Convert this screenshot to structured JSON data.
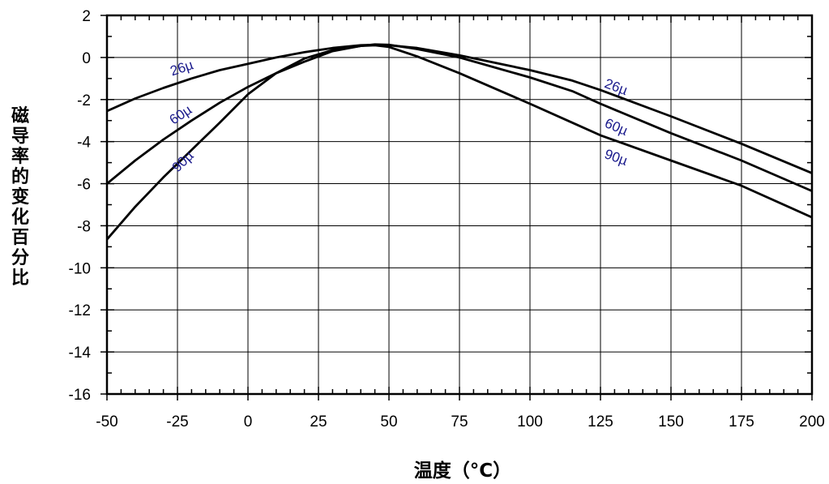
{
  "chart_data": {
    "type": "line",
    "xlabel": "温度（°C）",
    "ylabel": "磁导率的变化百分比",
    "xlim": [
      -50,
      200
    ],
    "ylim": [
      -16,
      2
    ],
    "xticks": [
      -50,
      -25,
      0,
      25,
      50,
      75,
      100,
      125,
      150,
      175,
      200
    ],
    "yticks": [
      2,
      0,
      -2,
      -4,
      -6,
      -8,
      -10,
      -12,
      -14,
      -16
    ],
    "x_minor_step": 5,
    "y_minor_step": 1,
    "grid": true,
    "colors": {
      "line": "#000000",
      "grid": "#000000",
      "label": "#1a1a8c"
    },
    "series": [
      {
        "name": "26µ",
        "points": [
          [
            -50,
            -2.55
          ],
          [
            -40,
            -1.95
          ],
          [
            -30,
            -1.45
          ],
          [
            -20,
            -1.0
          ],
          [
            -10,
            -0.6
          ],
          [
            0,
            -0.3
          ],
          [
            10,
            0.0
          ],
          [
            20,
            0.25
          ],
          [
            30,
            0.45
          ],
          [
            40,
            0.58
          ],
          [
            45,
            0.6
          ],
          [
            50,
            0.58
          ],
          [
            60,
            0.45
          ],
          [
            75,
            0.1
          ],
          [
            100,
            -0.6
          ],
          [
            115,
            -1.1
          ],
          [
            125,
            -1.55
          ],
          [
            150,
            -2.8
          ],
          [
            175,
            -4.1
          ],
          [
            200,
            -5.5
          ]
        ]
      },
      {
        "name": "60µ",
        "points": [
          [
            -50,
            -6.0
          ],
          [
            -40,
            -4.9
          ],
          [
            -30,
            -3.9
          ],
          [
            -20,
            -3.0
          ],
          [
            -10,
            -2.15
          ],
          [
            0,
            -1.4
          ],
          [
            10,
            -0.75
          ],
          [
            20,
            -0.2
          ],
          [
            30,
            0.3
          ],
          [
            40,
            0.55
          ],
          [
            45,
            0.62
          ],
          [
            50,
            0.6
          ],
          [
            60,
            0.4
          ],
          [
            75,
            0.0
          ],
          [
            100,
            -0.95
          ],
          [
            115,
            -1.6
          ],
          [
            125,
            -2.2
          ],
          [
            150,
            -3.6
          ],
          [
            175,
            -4.9
          ],
          [
            200,
            -6.35
          ]
        ]
      },
      {
        "name": "90µ",
        "points": [
          [
            -50,
            -8.65
          ],
          [
            -40,
            -7.1
          ],
          [
            -30,
            -5.7
          ],
          [
            -20,
            -4.4
          ],
          [
            -10,
            -3.1
          ],
          [
            0,
            -1.75
          ],
          [
            10,
            -0.75
          ],
          [
            20,
            -0.05
          ],
          [
            30,
            0.35
          ],
          [
            40,
            0.55
          ],
          [
            45,
            0.58
          ],
          [
            50,
            0.5
          ],
          [
            60,
            0.05
          ],
          [
            75,
            -0.75
          ],
          [
            100,
            -2.2
          ],
          [
            115,
            -3.1
          ],
          [
            125,
            -3.7
          ],
          [
            150,
            -4.9
          ],
          [
            175,
            -6.1
          ],
          [
            200,
            -7.6
          ]
        ]
      }
    ],
    "annotations": [
      {
        "text": "26µ",
        "x": -23,
        "y": -0.7,
        "series": "26µ"
      },
      {
        "text": "60µ",
        "x": -23,
        "y": -2.9,
        "series": "60µ"
      },
      {
        "text": "90µ",
        "x": -22,
        "y": -5.1,
        "series": "90µ"
      },
      {
        "text": "26µ",
        "x": 130,
        "y": -1.6,
        "series": "26µ"
      },
      {
        "text": "60µ",
        "x": 130,
        "y": -3.5,
        "series": "60µ"
      },
      {
        "text": "90µ",
        "x": 130,
        "y": -4.95,
        "series": "90µ"
      }
    ]
  }
}
